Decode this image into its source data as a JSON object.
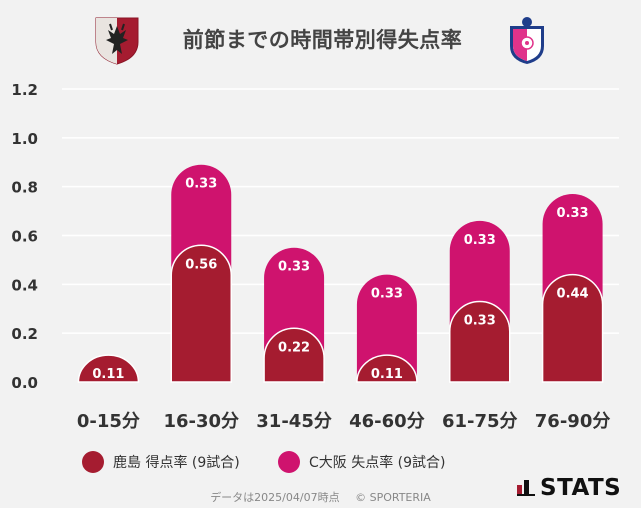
{
  "title": "前節までの時間帯別得失点率",
  "teams": {
    "home": {
      "crest_icon": "kashima-antlers-crest-icon"
    },
    "away": {
      "crest_icon": "cerezo-osaka-crest-icon"
    }
  },
  "colors": {
    "background": "#f2f2f2",
    "home": "#a51c30",
    "away": "#cf136e",
    "grid": "#ffffff"
  },
  "legend": {
    "home_label": "鹿島 得点率 (9試合)",
    "away_label": "C大阪 失点率 (9試合)"
  },
  "footer": {
    "date_text": "データは2025/04/07時点",
    "copyright": "© SPORTERIA"
  },
  "brand": {
    "name": "STATS",
    "logo_icon": "stats-logo-icon"
  },
  "chart_data": {
    "type": "bar",
    "stacked": true,
    "categories": [
      "0-15分",
      "16-30分",
      "31-45分",
      "46-60分",
      "61-75分",
      "76-90分"
    ],
    "series": [
      {
        "name": "鹿島 得点率 (9試合)",
        "values": [
          0.11,
          0.56,
          0.22,
          0.11,
          0.33,
          0.44
        ]
      },
      {
        "name": "C大阪 失点率 (9試合)",
        "values": [
          0,
          0.33,
          0.33,
          0.33,
          0.33,
          0.33
        ]
      }
    ],
    "ylim": [
      0,
      1.2
    ],
    "yticks": [
      "0.0",
      "0.2",
      "0.4",
      "0.6",
      "0.8",
      "1.0",
      "1.2"
    ],
    "grid": true,
    "legend_position": "bottom"
  }
}
